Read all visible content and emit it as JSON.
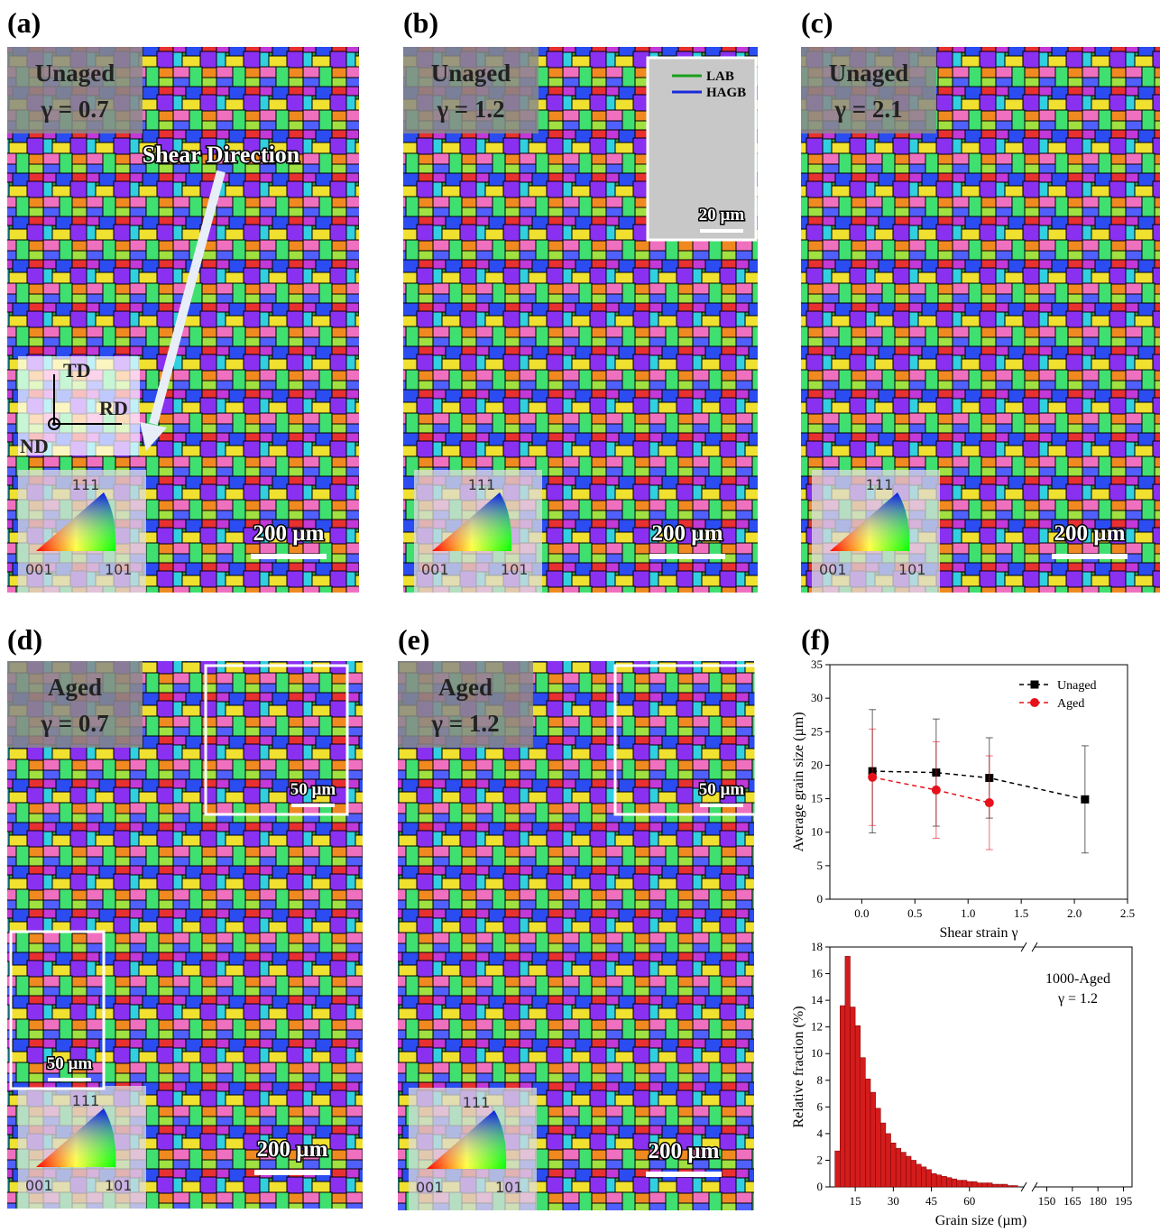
{
  "panels": [
    {
      "label": "(a)",
      "title": "Unaged",
      "strain": "γ = 0.7",
      "scale": "200 µm",
      "ipf": [
        "111",
        "001",
        "101"
      ],
      "annotation": "Shear Direction",
      "axes": [
        "TD",
        "RD",
        "ND"
      ]
    },
    {
      "label": "(b)",
      "title": "Unaged",
      "strain": "γ = 1.2",
      "scale": "200 µm",
      "ipf": [
        "111",
        "001",
        "101"
      ],
      "inset_legend": [
        "LAB",
        "HAGB"
      ],
      "inset_scales": [
        "20 µm"
      ]
    },
    {
      "label": "(c)",
      "title": "Unaged",
      "strain": "γ = 2.1",
      "scale": "200 µm",
      "ipf": [
        "111",
        "001",
        "101"
      ]
    },
    {
      "label": "(d)",
      "title": "Aged",
      "strain": "γ = 0.7",
      "scale": "200 µm",
      "ipf": [
        "111",
        "001",
        "101"
      ],
      "inset_scales": [
        "50 µm",
        "50 µm"
      ]
    },
    {
      "label": "(e)",
      "title": "Aged",
      "strain": "γ = 1.2",
      "scale": "200 µm",
      "ipf": [
        "111",
        "001",
        "101"
      ],
      "inset_scales": [
        "50 µm"
      ]
    }
  ],
  "chart_label": "(f)",
  "chart_data": [
    {
      "type": "line",
      "xlabel": "Shear strain γ",
      "ylabel": "Average grain size (µm)",
      "xlim": [
        -0.3,
        2.5
      ],
      "xticks": [
        {
          "value": 0,
          "label": "0.0"
        },
        0.5,
        {
          "value": 1,
          "label": "1.0"
        },
        1.5,
        {
          "value": 2,
          "label": "2.0"
        },
        2.5
      ],
      "ylim": [
        0,
        35
      ],
      "yticks": [
        0,
        5,
        10,
        15,
        20,
        25,
        30,
        35
      ],
      "legend": "upper right",
      "series": [
        {
          "name": "Unaged",
          "color": "#000000",
          "marker": "square",
          "x": [
            0.1,
            0.7,
            1.2,
            2.1
          ],
          "values": [
            19.1,
            18.9,
            18.1,
            14.9
          ],
          "errors": [
            9.2,
            8.0,
            6.0,
            8.0
          ]
        },
        {
          "name": "Aged",
          "color": "#e8101a",
          "marker": "circle",
          "x": [
            0.1,
            0.7,
            1.2
          ],
          "values": [
            18.2,
            16.3,
            14.4
          ],
          "errors": [
            7.2,
            7.2,
            7.0
          ]
        }
      ]
    },
    {
      "type": "histogram",
      "xlabel": "Grain size (µm)",
      "ylabel": "Relative fraction (%)",
      "annotation": [
        "1000-Aged",
        "γ = 1.2"
      ],
      "color": "#d41c1c",
      "bins": [
        7,
        9,
        11,
        13,
        15,
        17,
        19,
        21,
        23,
        25,
        27,
        29,
        31,
        33,
        35,
        37,
        39,
        41,
        43,
        45,
        47,
        49,
        51,
        53,
        55,
        57,
        59,
        61,
        63,
        65,
        67,
        69,
        71,
        73,
        75,
        77,
        79
      ],
      "values": [
        2.7,
        13.6,
        17.3,
        13.5,
        12.1,
        9.7,
        8.1,
        7.1,
        5.9,
        4.8,
        4.0,
        3.3,
        2.9,
        2.6,
        2.3,
        2.0,
        1.7,
        1.5,
        1.3,
        1.0,
        0.9,
        0.8,
        0.7,
        0.6,
        0.5,
        0.5,
        0.4,
        0.4,
        0.3,
        0.3,
        0.3,
        0.2,
        0.2,
        0.2,
        0.1,
        0.1
      ],
      "xlim": [
        5,
        200
      ],
      "axis_break": [
        80,
        145
      ],
      "xticks": [
        15,
        30,
        45,
        60,
        150,
        165,
        180,
        195
      ],
      "ylim": [
        0,
        18
      ],
      "yticks": [
        0,
        2,
        4,
        6,
        8,
        10,
        12,
        14,
        16,
        18
      ]
    }
  ]
}
